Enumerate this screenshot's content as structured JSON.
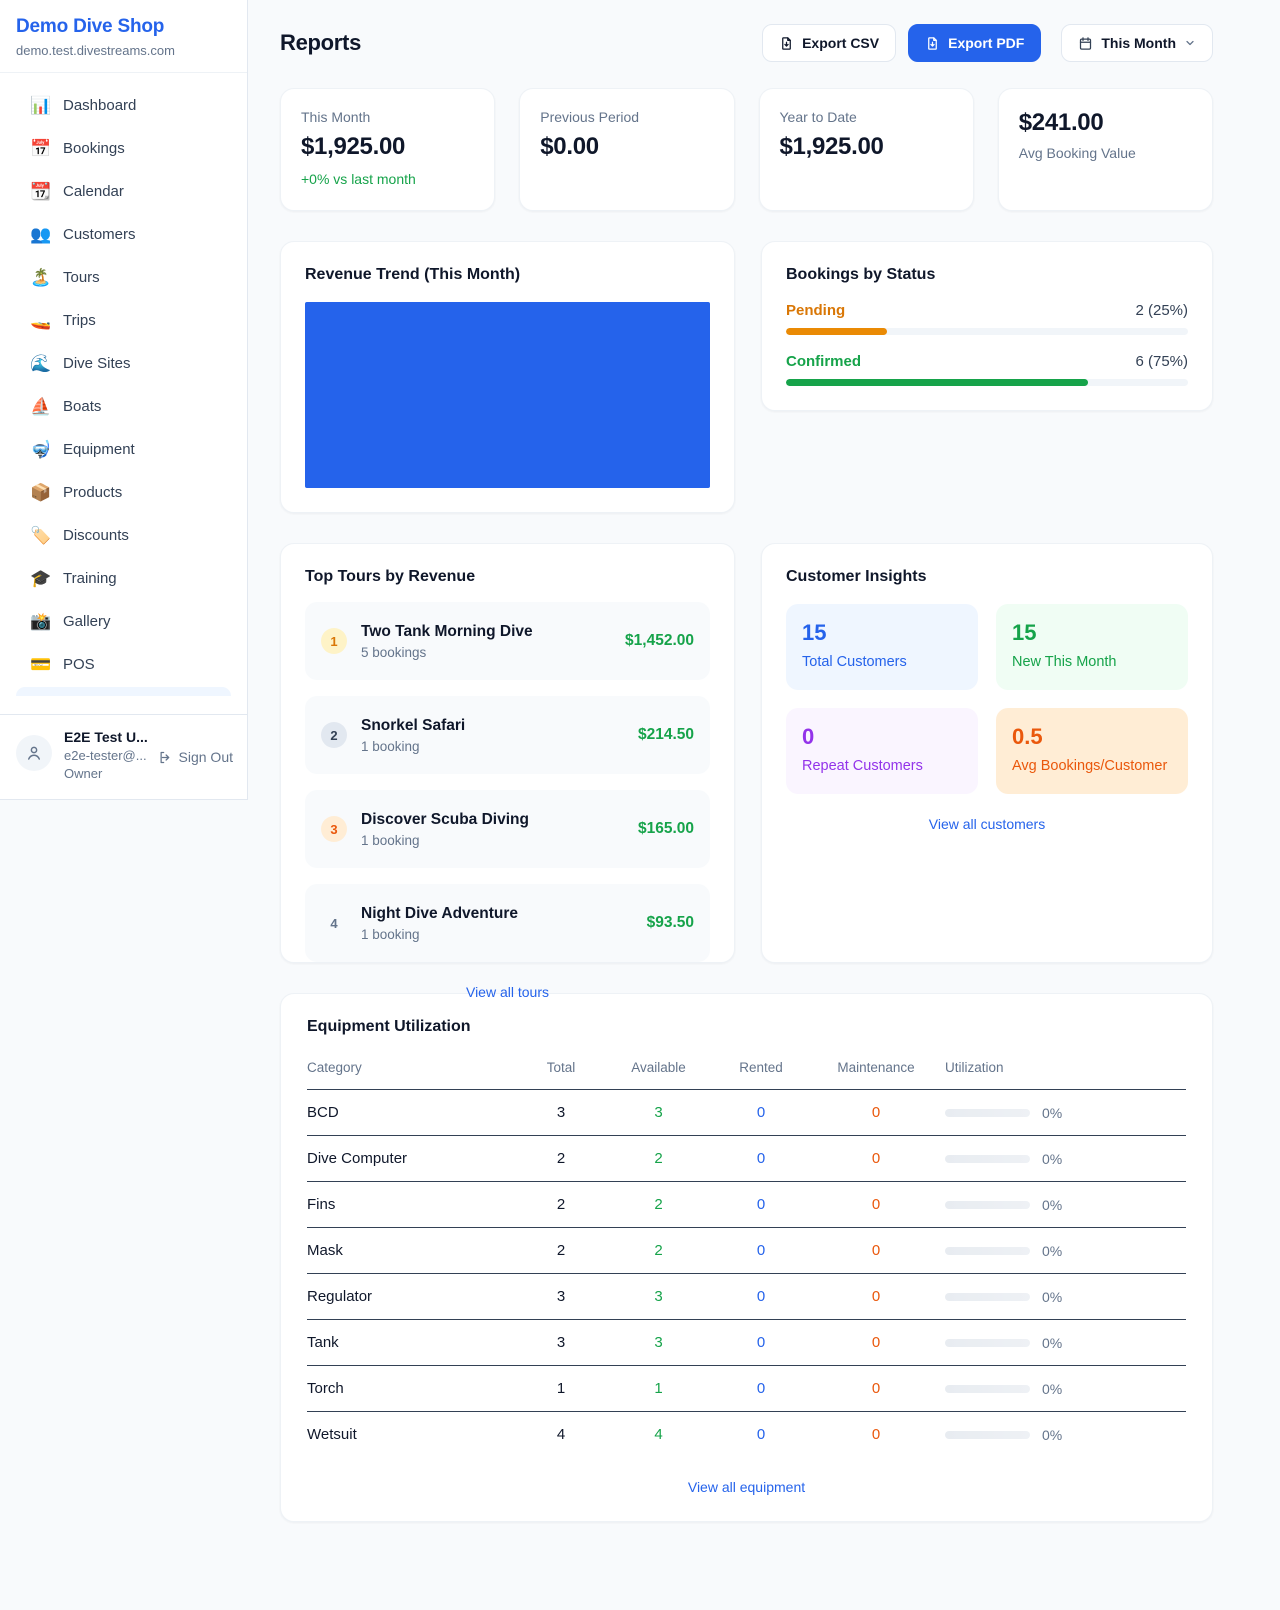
{
  "sidebar": {
    "shop_name": "Demo Dive Shop",
    "shop_domain": "demo.test.divestreams.com",
    "nav": [
      {
        "emoji": "📊",
        "label": "Dashboard"
      },
      {
        "emoji": "📅",
        "label": "Bookings"
      },
      {
        "emoji": "📆",
        "label": "Calendar"
      },
      {
        "emoji": "👥",
        "label": "Customers"
      },
      {
        "emoji": "🏝️",
        "label": "Tours"
      },
      {
        "emoji": "🚤",
        "label": "Trips"
      },
      {
        "emoji": "🌊",
        "label": "Dive Sites"
      },
      {
        "emoji": "⛵",
        "label": "Boats"
      },
      {
        "emoji": "🤿",
        "label": "Equipment"
      },
      {
        "emoji": "📦",
        "label": "Products"
      },
      {
        "emoji": "🏷️",
        "label": "Discounts"
      },
      {
        "emoji": "🎓",
        "label": "Training"
      },
      {
        "emoji": "📸",
        "label": "Gallery"
      },
      {
        "emoji": "💳",
        "label": "POS"
      }
    ],
    "user": {
      "name": "E2E Test U...",
      "email": "e2e-tester@...",
      "role": "Owner",
      "sign_out": "Sign Out"
    }
  },
  "header": {
    "title": "Reports",
    "export_csv": "Export CSV",
    "export_pdf": "Export PDF",
    "period": "This Month"
  },
  "stats": [
    {
      "label": "This Month",
      "value": "$1,925.00",
      "delta": "+0% vs last month"
    },
    {
      "label": "Previous Period",
      "value": "$0.00"
    },
    {
      "label": "Year to Date",
      "value": "$1,925.00"
    },
    {
      "label": "Avg Booking Value",
      "value": "$241.00"
    }
  ],
  "revenue_trend": {
    "title": "Revenue Trend (This Month)",
    "bar_color": "#2563eb",
    "bar_fill_pct": "100%"
  },
  "bookings_by_status": {
    "title": "Bookings by Status",
    "rows": [
      {
        "label": "Pending",
        "value": "2 (25%)",
        "width": "25%",
        "label_color": "#d97706",
        "bar_color": "#ea8a04"
      },
      {
        "label": "Confirmed",
        "value": "6 (75%)",
        "width": "75%",
        "label_color": "#16a34a",
        "bar_color": "#16a34a"
      }
    ]
  },
  "top_tours": {
    "title": "Top Tours by Revenue",
    "items": [
      {
        "rank": "1",
        "name": "Two Tank Morning Dive",
        "bookings": "5 bookings",
        "amount": "$1,452.00"
      },
      {
        "rank": "2",
        "name": "Snorkel Safari",
        "bookings": "1 booking",
        "amount": "$214.50"
      },
      {
        "rank": "3",
        "name": "Discover Scuba Diving",
        "bookings": "1 booking",
        "amount": "$165.00"
      },
      {
        "rank": "4",
        "name": "Night Dive Adventure",
        "bookings": "1 booking",
        "amount": "$93.50"
      }
    ],
    "link": "View all tours"
  },
  "customer_insights": {
    "title": "Customer Insights",
    "tiles": [
      {
        "number": "15",
        "label": "Total Customers",
        "accent": "#2563eb"
      },
      {
        "number": "15",
        "label": "New This Month",
        "accent": "#16a34a"
      },
      {
        "number": "0",
        "label": "Repeat Customers",
        "accent": "#9333ea"
      },
      {
        "number": "0.5",
        "label": "Avg Bookings/Customer",
        "accent": "#ea580c"
      }
    ],
    "link": "View all customers"
  },
  "equipment": {
    "title": "Equipment Utilization",
    "columns": [
      "Category",
      "Total",
      "Available",
      "Rented",
      "Maintenance",
      "Utilization"
    ],
    "rows": [
      {
        "category": "BCD",
        "total": "3",
        "available": "3",
        "rented": "0",
        "maintenance": "0",
        "utilization": "0%"
      },
      {
        "category": "Dive Computer",
        "total": "2",
        "available": "2",
        "rented": "0",
        "maintenance": "0",
        "utilization": "0%"
      },
      {
        "category": "Fins",
        "total": "2",
        "available": "2",
        "rented": "0",
        "maintenance": "0",
        "utilization": "0%"
      },
      {
        "category": "Mask",
        "total": "2",
        "available": "2",
        "rented": "0",
        "maintenance": "0",
        "utilization": "0%"
      },
      {
        "category": "Regulator",
        "total": "3",
        "available": "3",
        "rented": "0",
        "maintenance": "0",
        "utilization": "0%"
      },
      {
        "category": "Tank",
        "total": "3",
        "available": "3",
        "rented": "0",
        "maintenance": "0",
        "utilization": "0%"
      },
      {
        "category": "Torch",
        "total": "1",
        "available": "1",
        "rented": "0",
        "maintenance": "0",
        "utilization": "0%"
      },
      {
        "category": "Wetsuit",
        "total": "4",
        "available": "4",
        "rented": "0",
        "maintenance": "0",
        "utilization": "0%"
      }
    ],
    "link": "View all equipment"
  }
}
